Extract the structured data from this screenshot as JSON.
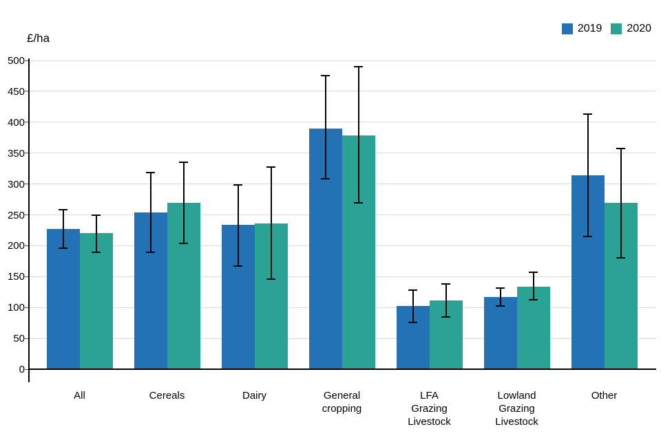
{
  "chart_data": {
    "type": "bar",
    "title": "",
    "ylabel": "£/ha",
    "xlabel": "",
    "grid": true,
    "legend_position": "top-right",
    "ylim": [
      0,
      500
    ],
    "ytick_step": 50,
    "axis_color": "#000000",
    "gridline_color": "#d9d9d9",
    "categories": [
      "All",
      "Cereals",
      "Dairy",
      "General cropping",
      "LFA Grazing Livestock",
      "Lowland Grazing Livestock",
      "Other"
    ],
    "category_label_lines": [
      [
        "All"
      ],
      [
        "Cereals"
      ],
      [
        "Dairy"
      ],
      [
        "General",
        "cropping"
      ],
      [
        "LFA",
        "Grazing",
        "Livestock"
      ],
      [
        "Lowland",
        "Grazing",
        "Livestock"
      ],
      [
        "Other"
      ]
    ],
    "series": [
      {
        "name": "2019",
        "color": "#2272b5",
        "values": [
          227,
          254,
          234,
          390,
          102,
          117,
          314
        ],
        "err_low": [
          196,
          189,
          167,
          308,
          76,
          102,
          215
        ],
        "err_high": [
          258,
          319,
          299,
          475,
          128,
          131,
          413
        ]
      },
      {
        "name": "2020",
        "color": "#2aa394",
        "values": [
          220,
          269,
          236,
          379,
          111,
          134,
          269
        ],
        "err_low": [
          189,
          204,
          146,
          270,
          85,
          112,
          180
        ],
        "err_high": [
          249,
          335,
          327,
          490,
          138,
          157,
          358
        ]
      }
    ]
  }
}
